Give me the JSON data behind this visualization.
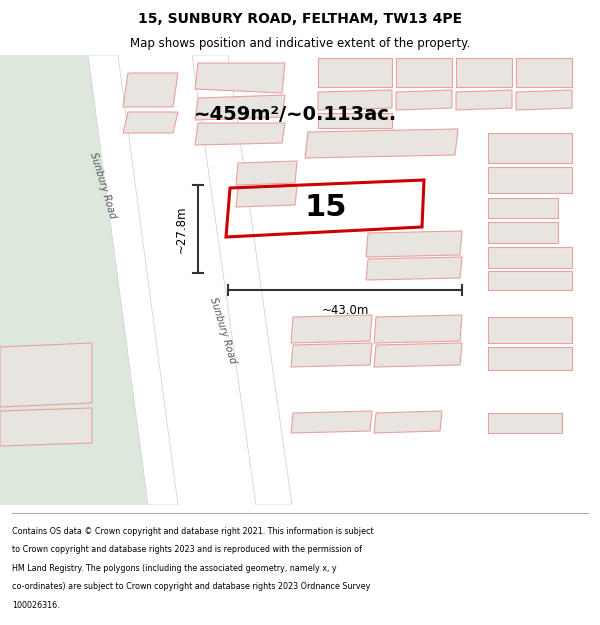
{
  "title": "15, SUNBURY ROAD, FELTHAM, TW13 4PE",
  "subtitle": "Map shows position and indicative extent of the property.",
  "area_label": "~459m²/~0.113ac.",
  "plot_number": "15",
  "dim_width": "~43.0m",
  "dim_height": "~27.8m",
  "road_label_upper": "Sunbury Road",
  "road_label_lower": "Sunbury Road",
  "footer_lines": [
    "Contains OS data © Crown copyright and database right 2021. This information is subject",
    "to Crown copyright and database rights 2023 and is reproduced with the permission of",
    "HM Land Registry. The polygons (including the associated geometry, namely x, y",
    "co-ordinates) are subject to Crown copyright and database rights 2023 Ordnance Survey",
    "100026316."
  ],
  "map_bg": "#f0ede8",
  "building_fill": "#e8e4df",
  "building_edge": "#e8a0a0",
  "plot_edge": "#cc0000",
  "green_area": "#dce8dc",
  "dim_line_color": "#333333",
  "title_color": "#000000",
  "footer_color": "#000000"
}
